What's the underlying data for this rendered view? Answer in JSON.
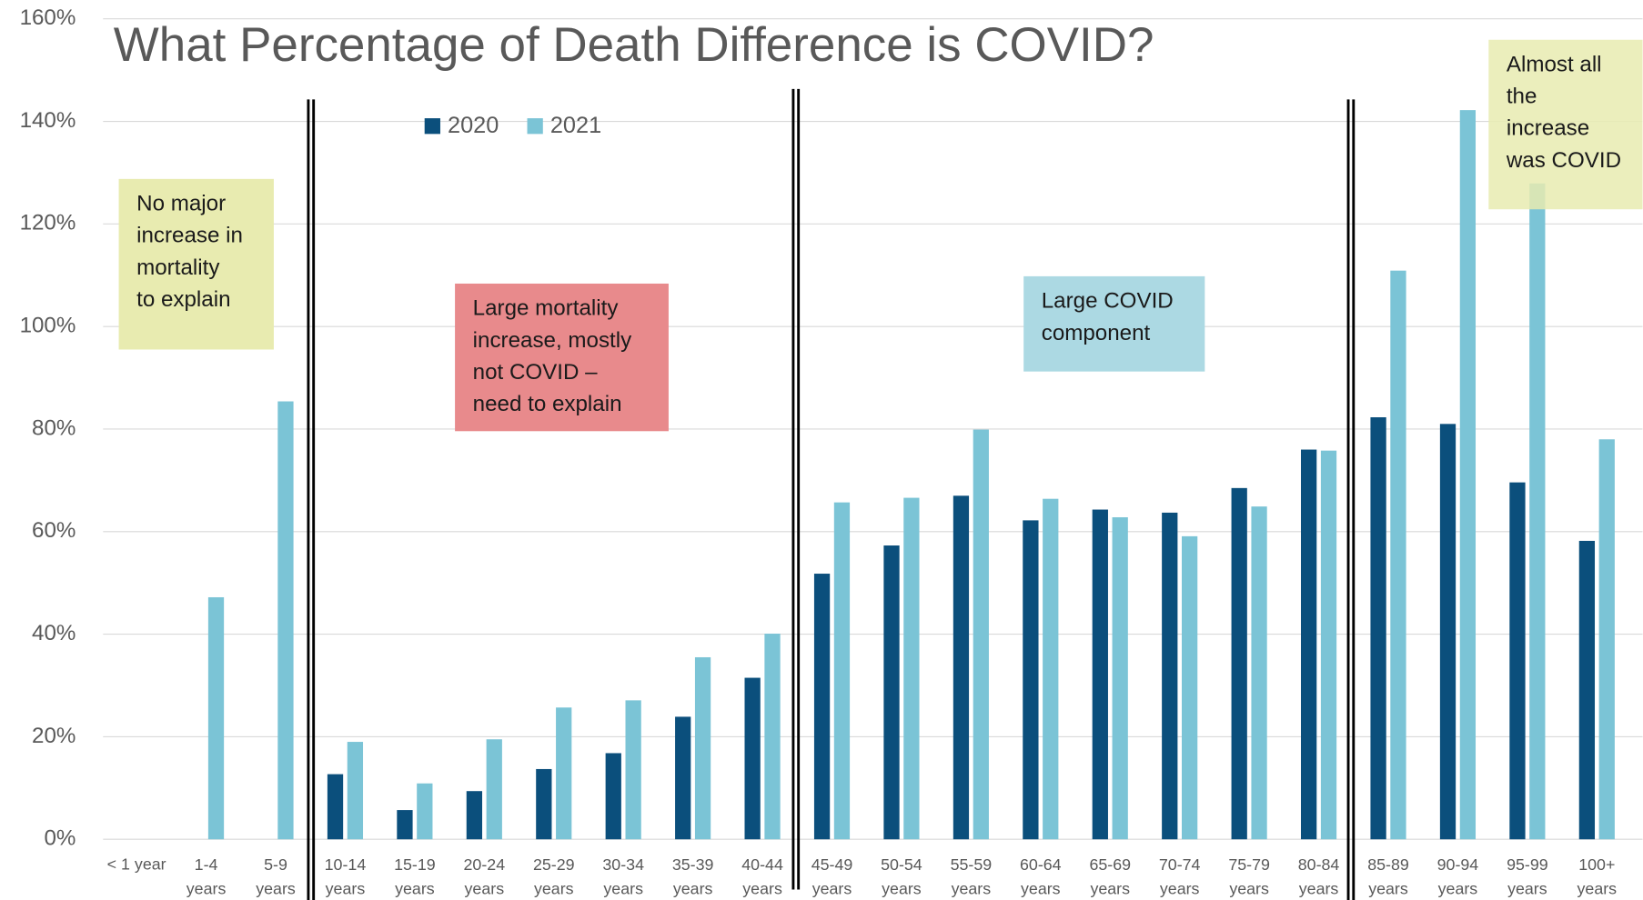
{
  "chart_data": {
    "type": "bar",
    "title": "What Percentage of Death Difference is COVID?",
    "categories": [
      "< 1 year",
      "1-4\nyears",
      "5-9\nyears",
      "10-14\nyears",
      "15-19\nyears",
      "20-24\nyears",
      "25-29\nyears",
      "30-34\nyears",
      "35-39\nyears",
      "40-44\nyears",
      "45-49\nyears",
      "50-54\nyears",
      "55-59\nyears",
      "60-64\nyears",
      "65-69\nyears",
      "70-74\nyears",
      "75-79\nyears",
      "80-84\nyears",
      "85-89\nyears",
      "90-94\nyears",
      "95-99\nyears",
      "100+\nyears"
    ],
    "series": [
      {
        "name": "2020",
        "color": "#0b4f7c",
        "values": [
          null,
          null,
          null,
          12.7,
          5.7,
          9.4,
          13.7,
          16.8,
          23.9,
          31.5,
          51.8,
          57.3,
          67.0,
          62.2,
          64.3,
          63.7,
          68.5,
          76.0,
          82.3,
          81.0,
          69.6,
          58.2
        ]
      },
      {
        "name": "2021",
        "color": "#7bc4d6",
        "values": [
          null,
          47.2,
          85.4,
          19.0,
          10.9,
          19.5,
          25.7,
          27.1,
          35.5,
          40.1,
          65.7,
          66.6,
          79.9,
          66.4,
          62.8,
          59.1,
          64.9,
          75.8,
          110.9,
          142.2,
          127.9,
          78.0
        ]
      }
    ],
    "ylim": [
      0,
      160
    ],
    "yticks": [
      {
        "value": 0,
        "label": "0%"
      },
      {
        "value": 20,
        "label": "20%"
      },
      {
        "value": 40,
        "label": "40%"
      },
      {
        "value": 60,
        "label": "60%"
      },
      {
        "value": 80,
        "label": "80%"
      },
      {
        "value": 100,
        "label": "100%"
      },
      {
        "value": 120,
        "label": "120%"
      },
      {
        "value": 140,
        "label": "140%"
      },
      {
        "value": 160,
        "label": "160%"
      }
    ],
    "grid": true,
    "legend": "top",
    "annotations": [
      {
        "text": "No major\nincrease in\nmortality\nto explain",
        "color": "#e8ebb0"
      },
      {
        "text": "Large mortality\nincrease, mostly\nnot COVID –\nneed to explain",
        "color": "#e88a8c"
      },
      {
        "text": "Large COVID\ncomponent",
        "color": "#acd9e3"
      },
      {
        "text": "Almost all\nthe\nincrease\nwas COVID",
        "color": "#e8ebb0"
      }
    ]
  }
}
